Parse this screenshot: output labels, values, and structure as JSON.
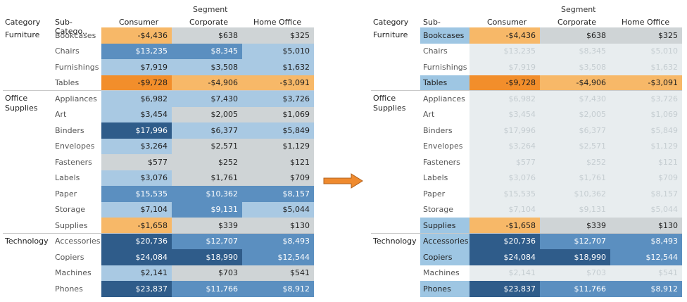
{
  "segment_title": "Segment",
  "headers": {
    "category": "Category",
    "subcategory": "Sub-Catego..",
    "consumer": "Consumer",
    "corporate": "Corporate",
    "home_office": "Home Office"
  },
  "colors": {
    "orange_strong": "#f28e2b",
    "orange_light": "#f7b868",
    "blue_dark": "#2f5c8a",
    "blue_mid": "#5b8fc0",
    "blue_light": "#a9c9e3",
    "gray": "#cfd4d6",
    "faded": "#e8edef",
    "highlight_label": "#9ec6e3"
  },
  "categories": [
    {
      "name": "Furniture",
      "rows": [
        {
          "sub": "Bookcases",
          "consumer": "-$4,436",
          "corporate": "$638",
          "home_office": "$325",
          "colors": [
            "orange_light",
            "gray",
            "gray"
          ],
          "highlight": true
        },
        {
          "sub": "Chairs",
          "consumer": "$13,235",
          "corporate": "$8,345",
          "home_office": "$5,010",
          "colors": [
            "blue_mid",
            "blue_mid",
            "blue_light"
          ],
          "highlight": false
        },
        {
          "sub": "Furnishings",
          "consumer": "$7,919",
          "corporate": "$3,508",
          "home_office": "$1,632",
          "colors": [
            "blue_light",
            "blue_light",
            "blue_light"
          ],
          "highlight": false
        },
        {
          "sub": "Tables",
          "consumer": "-$9,728",
          "corporate": "-$4,906",
          "home_office": "-$3,091",
          "colors": [
            "orange_strong",
            "orange_light",
            "orange_light"
          ],
          "highlight": true
        }
      ]
    },
    {
      "name": "Office Supplies",
      "rows": [
        {
          "sub": "Appliances",
          "consumer": "$6,982",
          "corporate": "$7,430",
          "home_office": "$3,726",
          "colors": [
            "blue_light",
            "blue_light",
            "blue_light"
          ],
          "highlight": false
        },
        {
          "sub": "Art",
          "consumer": "$3,454",
          "corporate": "$2,005",
          "home_office": "$1,069",
          "colors": [
            "blue_light",
            "gray",
            "gray"
          ],
          "highlight": false
        },
        {
          "sub": "Binders",
          "consumer": "$17,996",
          "corporate": "$6,377",
          "home_office": "$5,849",
          "colors": [
            "blue_dark",
            "blue_light",
            "blue_light"
          ],
          "highlight": false
        },
        {
          "sub": "Envelopes",
          "consumer": "$3,264",
          "corporate": "$2,571",
          "home_office": "$1,129",
          "colors": [
            "blue_light",
            "gray",
            "gray"
          ],
          "highlight": false
        },
        {
          "sub": "Fasteners",
          "consumer": "$577",
          "corporate": "$252",
          "home_office": "$121",
          "colors": [
            "gray",
            "gray",
            "gray"
          ],
          "highlight": false
        },
        {
          "sub": "Labels",
          "consumer": "$3,076",
          "corporate": "$1,761",
          "home_office": "$709",
          "colors": [
            "blue_light",
            "gray",
            "gray"
          ],
          "highlight": false
        },
        {
          "sub": "Paper",
          "consumer": "$15,535",
          "corporate": "$10,362",
          "home_office": "$8,157",
          "colors": [
            "blue_mid",
            "blue_mid",
            "blue_mid"
          ],
          "highlight": false
        },
        {
          "sub": "Storage",
          "consumer": "$7,104",
          "corporate": "$9,131",
          "home_office": "$5,044",
          "colors": [
            "blue_light",
            "blue_mid",
            "blue_light"
          ],
          "highlight": false
        },
        {
          "sub": "Supplies",
          "consumer": "-$1,658",
          "corporate": "$339",
          "home_office": "$130",
          "colors": [
            "orange_light",
            "gray",
            "gray"
          ],
          "highlight": true
        }
      ]
    },
    {
      "name": "Technology",
      "rows": [
        {
          "sub": "Accessories",
          "consumer": "$20,736",
          "corporate": "$12,707",
          "home_office": "$8,493",
          "colors": [
            "blue_dark",
            "blue_mid",
            "blue_mid"
          ],
          "highlight": true
        },
        {
          "sub": "Copiers",
          "consumer": "$24,084",
          "corporate": "$18,990",
          "home_office": "$12,544",
          "colors": [
            "blue_dark",
            "blue_dark",
            "blue_mid"
          ],
          "highlight": true
        },
        {
          "sub": "Machines",
          "consumer": "$2,141",
          "corporate": "$703",
          "home_office": "$541",
          "colors": [
            "blue_light",
            "gray",
            "gray"
          ],
          "highlight": false
        },
        {
          "sub": "Phones",
          "consumer": "$23,837",
          "corporate": "$11,766",
          "home_office": "$8,912",
          "colors": [
            "blue_dark",
            "blue_mid",
            "blue_mid"
          ],
          "highlight": true
        }
      ]
    }
  ]
}
